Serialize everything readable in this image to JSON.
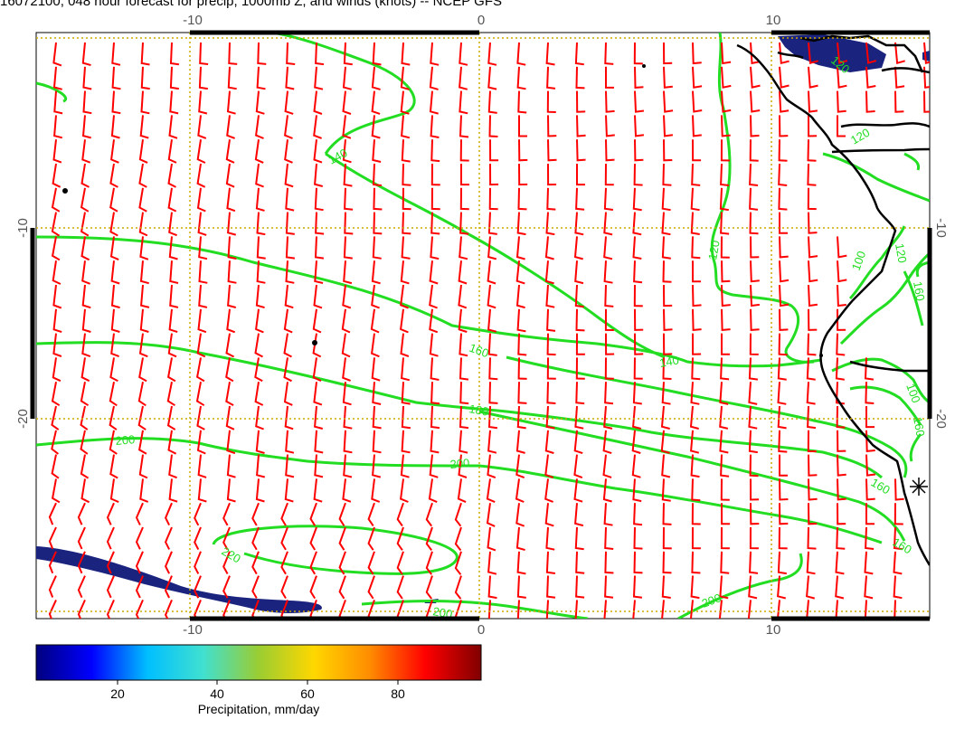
{
  "title": "16072100, 048 hour forecast for precip, 1000mb Z, and winds (knots) -- NCEP GFS",
  "map": {
    "lon_ticks_top": [
      "-10",
      "0",
      "10"
    ],
    "lon_ticks_bottom": [
      "-10",
      "0",
      "10"
    ],
    "lat_ticks_left": [
      "-10",
      "-20"
    ],
    "lat_ticks_right": [
      "-10",
      "-20"
    ],
    "contour_labels": [
      {
        "text": "140"
      },
      {
        "text": "120"
      },
      {
        "text": "160"
      },
      {
        "text": "140"
      },
      {
        "text": "180"
      },
      {
        "text": "200"
      },
      {
        "text": "200"
      },
      {
        "text": "220"
      },
      {
        "text": "200"
      },
      {
        "text": "200"
      },
      {
        "text": "160"
      },
      {
        "text": "160"
      },
      {
        "text": "160"
      },
      {
        "text": "120"
      },
      {
        "text": "120"
      },
      {
        "text": "120"
      },
      {
        "text": "160"
      },
      {
        "text": "100"
      },
      {
        "text": "100"
      }
    ],
    "colors": {
      "contour": "#22dd22",
      "wind_barb": "#ff0000",
      "grid": "#ccaa00",
      "coastline": "#000000",
      "precip": "#1a237e"
    }
  },
  "colorbar": {
    "ticks": [
      "20",
      "40",
      "60",
      "80"
    ],
    "label": "Precipitation, mm/day",
    "colors": [
      "#00007f",
      "#0000ff",
      "#00bfff",
      "#40e0d0",
      "#9acd32",
      "#ffd700",
      "#ff8c00",
      "#ff0000",
      "#800000"
    ]
  }
}
